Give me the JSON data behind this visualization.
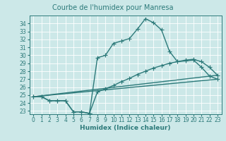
{
  "title": "Courbe de l'humidex pour Manresa",
  "xlabel": "Humidex (Indice chaleur)",
  "bg_color": "#cce8e8",
  "line_color": "#2d7a7a",
  "grid_color": "#ffffff",
  "xlim": [
    -0.5,
    23.5
  ],
  "ylim": [
    22.6,
    35.0
  ],
  "xticks": [
    0,
    1,
    2,
    3,
    4,
    5,
    6,
    7,
    8,
    9,
    10,
    11,
    12,
    13,
    14,
    15,
    16,
    17,
    18,
    19,
    20,
    21,
    22,
    23
  ],
  "yticks": [
    23,
    24,
    25,
    26,
    27,
    28,
    29,
    30,
    31,
    32,
    33,
    34
  ],
  "line1_x": [
    0,
    1,
    2,
    3,
    4,
    5,
    6,
    7,
    8,
    9,
    10,
    11,
    12,
    13,
    14,
    15,
    16,
    17,
    18,
    19,
    20,
    21,
    22,
    23
  ],
  "line1_y": [
    24.8,
    24.8,
    24.3,
    24.3,
    24.3,
    22.9,
    22.9,
    22.7,
    29.7,
    30.0,
    31.5,
    31.8,
    32.1,
    33.3,
    34.6,
    34.1,
    33.2,
    30.5,
    29.2,
    29.3,
    29.4,
    28.5,
    27.4,
    27.0
  ],
  "line2_x": [
    0,
    1,
    2,
    3,
    4,
    5,
    6,
    7,
    8,
    9,
    10,
    11,
    12,
    13,
    14,
    15,
    16,
    17,
    18,
    19,
    20,
    21,
    22,
    23
  ],
  "line2_y": [
    24.8,
    24.8,
    24.3,
    24.3,
    24.3,
    22.9,
    22.9,
    22.7,
    25.4,
    25.8,
    26.2,
    26.7,
    27.1,
    27.6,
    28.0,
    28.4,
    28.7,
    29.0,
    29.2,
    29.4,
    29.5,
    29.2,
    28.5,
    27.5
  ],
  "line3_x": [
    0,
    23
  ],
  "line3_y": [
    24.8,
    27.0
  ],
  "line4_x": [
    0,
    23
  ],
  "line4_y": [
    24.8,
    27.5
  ],
  "markersize": 2.5,
  "linewidth": 1.0,
  "title_fontsize": 7,
  "tick_fontsize": 5.5,
  "xlabel_fontsize": 6.5
}
